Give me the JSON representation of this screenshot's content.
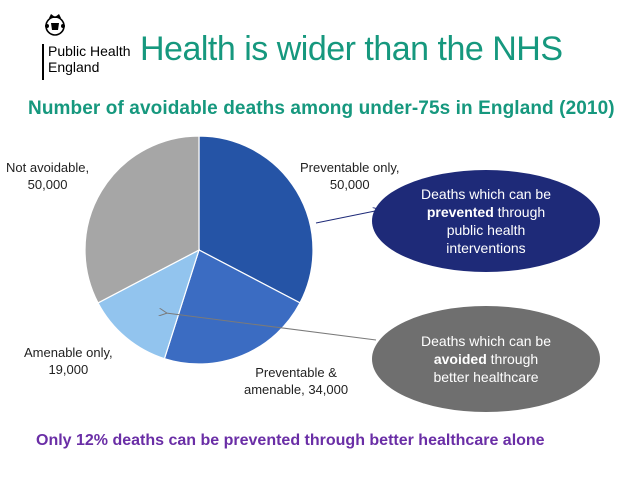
{
  "header": {
    "logo_line1": "Public Health",
    "logo_line2": "England",
    "title": "Health is wider than the NHS"
  },
  "chart_data": {
    "type": "pie",
    "title": "Number of avoidable deaths among under-75s in England (2010)",
    "start": "12 o'clock, clockwise",
    "slices": [
      {
        "name": "Preventable only",
        "value": 50000,
        "label_line1": "Preventable only,",
        "label_line2": "50,000",
        "color": "#2554a6"
      },
      {
        "name": "Preventable & amenable",
        "value": 34000,
        "label_line1": "Preventable &",
        "label_line2": "amenable, 34,000",
        "color": "#3b6cc2"
      },
      {
        "name": "Amenable only",
        "value": 19000,
        "label_line1": "Amenable only,",
        "label_line2": "19,000",
        "color": "#92c4ee"
      },
      {
        "name": "Not avoidable",
        "value": 50000,
        "label_line1": "Not avoidable,",
        "label_line2": "50,000",
        "color": "#a6a6a6"
      }
    ]
  },
  "callouts": {
    "prevented": {
      "line1": "Deaths which can be",
      "bold": "prevented",
      "rest": " through",
      "line3": "public health",
      "line4": "interventions",
      "color": "#1e2a78"
    },
    "avoided": {
      "line1": "Deaths which can be",
      "bold": "avoided",
      "rest": " through",
      "line3": "better healthcare",
      "color": "#6f6f6f"
    }
  },
  "footer": {
    "text": "Only 12% deaths can be prevented through better healthcare alone"
  }
}
